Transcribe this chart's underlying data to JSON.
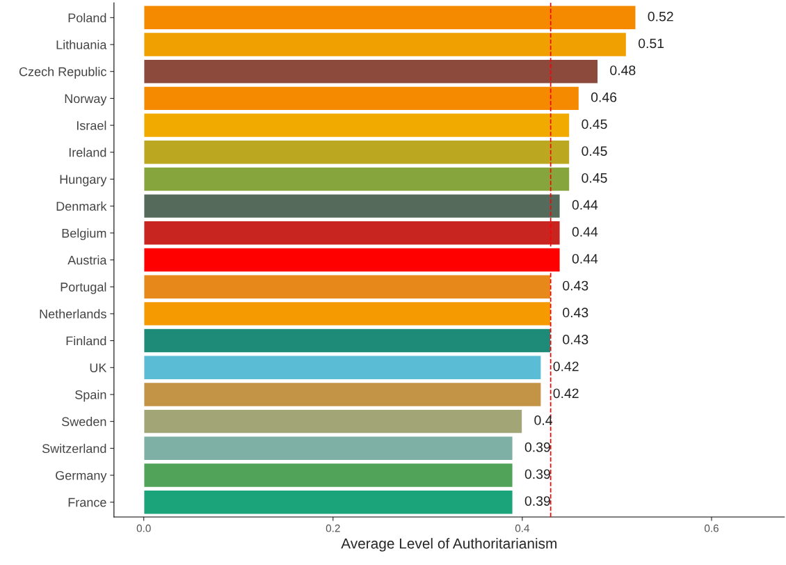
{
  "chart_data": {
    "type": "bar",
    "orientation": "horizontal",
    "xlabel": "Average Level of Authoritarianism",
    "categories": [
      "Poland",
      "Lithuania",
      "Czech Republic",
      "Norway",
      "Israel",
      "Ireland",
      "Hungary",
      "Denmark",
      "Belgium",
      "Austria",
      "Portugal",
      "Netherlands",
      "Finland",
      "UK",
      "Spain",
      "Sweden",
      "Switzerland",
      "Germany",
      "France"
    ],
    "values": [
      0.52,
      0.51,
      0.48,
      0.46,
      0.45,
      0.45,
      0.45,
      0.44,
      0.44,
      0.44,
      0.43,
      0.43,
      0.43,
      0.42,
      0.42,
      0.4,
      0.39,
      0.39,
      0.39
    ],
    "colors": [
      "#f58a00",
      "#f0a000",
      "#8b4a3c",
      "#f58a00",
      "#f0aa00",
      "#bca820",
      "#86a53c",
      "#556a5a",
      "#c82420",
      "#fe0000",
      "#e6891a",
      "#f59a00",
      "#1e8a78",
      "#5bbcd6",
      "#c39446",
      "#a2a576",
      "#7fb0a6",
      "#51a35a",
      "#1ba37a"
    ],
    "xlim": [
      -0.0315,
      0.677
    ],
    "xticks": [
      {
        "value": 0,
        "label": "0.0"
      },
      0.2,
      0.4,
      0.6
    ],
    "data_labels": true,
    "grid": false,
    "legend": false,
    "ref_lines": [
      {
        "axis": "x",
        "value": 0.43,
        "color": "#ff0000",
        "line_style": "dashed"
      }
    ]
  }
}
